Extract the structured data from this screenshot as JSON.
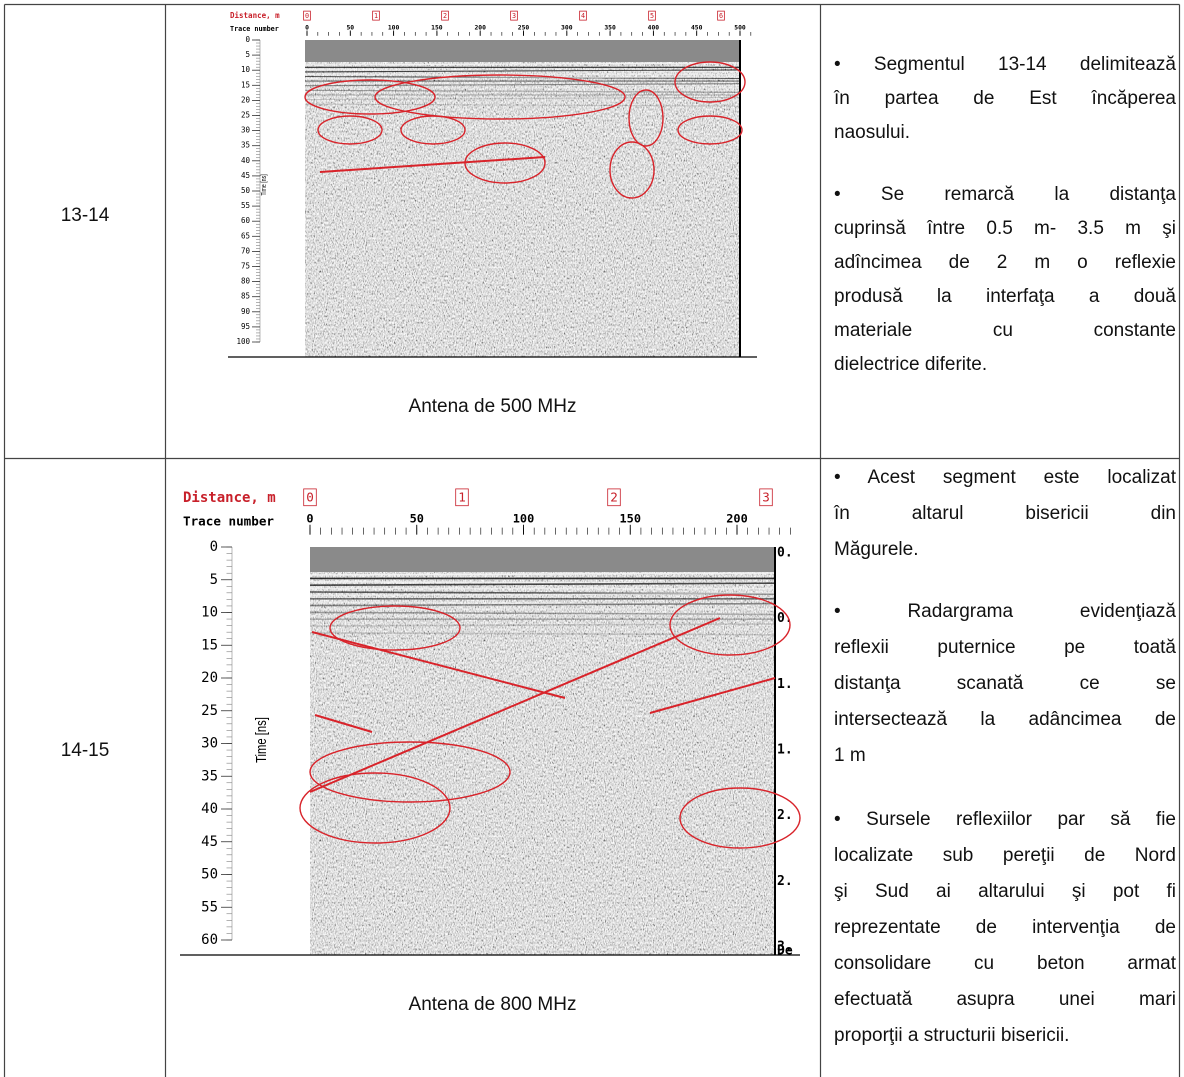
{
  "table": {
    "rows": [
      {
        "segment": "13-14",
        "figure": {
          "distance_label": "Distance, m",
          "distance_marks": [
            0,
            1,
            2,
            3,
            4,
            5,
            6
          ],
          "trace_label": "Trace number",
          "trace_ticks": [
            0,
            50,
            100,
            150,
            200,
            250,
            300,
            350,
            400,
            450,
            500
          ],
          "time_label": "Time [ns]",
          "time_ticks": [
            0,
            5,
            10,
            15,
            20,
            25,
            30,
            35,
            40,
            45,
            50,
            55,
            60,
            65,
            70,
            75,
            80,
            85,
            90,
            95,
            100
          ]
        },
        "caption": "Antena de 500 MHz",
        "notes": [
          [
            "• Segmentul 13-14 delimitează",
            "în partea de Est încăperea",
            "naosului."
          ],
          [
            "•  Se remarcă la distanţa",
            "cuprinsă între 0.5 m- 3.5 m şi",
            "adîncimea de  2 m o reflexie",
            "produsă la interfaţa a două",
            "materiale cu constante",
            "dielectrice diferite."
          ]
        ]
      },
      {
        "segment": "14-15",
        "figure": {
          "distance_label": "Distance, m",
          "distance_marks": [
            0,
            1,
            2,
            3
          ],
          "trace_label": "Trace number",
          "trace_ticks": [
            0,
            50,
            100,
            150,
            200
          ],
          "time_label": "Time [ns]",
          "time_ticks": [
            0,
            5,
            10,
            15,
            20,
            25,
            30,
            35,
            40,
            45,
            50,
            55,
            60
          ],
          "depth_labels": [
            "0.",
            "0.",
            "1.",
            "1.",
            "2.",
            "2.",
            "3.",
            "De"
          ]
        },
        "caption": "Antena de 800 MHz",
        "notes": [
          [
            "• Acest segment este localizat",
            "în altarul bisericii din",
            "Măgurele."
          ],
          [
            "•  Radargrama evidenţiază",
            "reflexii puternice pe toată",
            "distanţa scanată ce se",
            "intersectează la adâncimea de",
            "1 m"
          ],
          [
            "• Sursele reflexiilor par să fie",
            "localizate sub pereţii de Nord",
            "şi Sud ai altarului şi pot fi",
            "reprezentate de intervenţia de",
            "consolidare cu beton armat",
            "efectuată asupra unei mari",
            "proporţii a structurii bisericii."
          ]
        ]
      }
    ]
  }
}
